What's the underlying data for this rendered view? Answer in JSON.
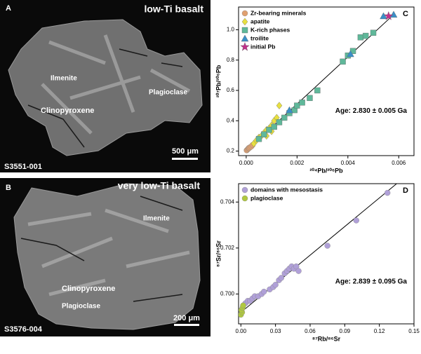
{
  "panels": [
    {
      "letter": "A",
      "title": "low-Ti basalt",
      "labels": [
        "Ilmenite",
        "Plagioclase",
        "Clinopyroxene"
      ],
      "sample": "S3551-001",
      "scale": "500 μm"
    },
    {
      "letter": "B",
      "title": "very low-Ti basalt",
      "labels": [
        "Ilmenite",
        "Clinopyroxene",
        "Plagioclase"
      ],
      "sample": "S3576-004",
      "scale": "200 μm"
    }
  ],
  "chart_data": [
    {
      "type": "scatter",
      "panel": "C",
      "x_label": "²⁰⁴Pb/²⁰⁶Pb",
      "y_label": "²⁰⁷Pb/²⁰⁶Pb",
      "annotation": "Age: 2.830 ± 0.005 Ga",
      "xlim": [
        -0.0003,
        0.0066
      ],
      "ylim": [
        0.17,
        1.15
      ],
      "xticks": [
        {
          "value": 0,
          "label": "0.000"
        },
        0.002,
        0.004,
        0.006
      ],
      "yticks": [
        0.2,
        0.4,
        0.6,
        0.8,
        {
          "value": 1,
          "label": "1.0"
        }
      ],
      "legend": "top-left",
      "series": [
        {
          "name": "Zr-bearing minerals",
          "color": "#e0a070",
          "marker": "circle",
          "x": [
            2e-05,
            5e-05,
            8e-05,
            0.0001,
            0.00012,
            0.00015,
            0.0002,
            0.00025
          ],
          "values": [
            0.205,
            0.21,
            0.215,
            0.22,
            0.22,
            0.225,
            0.23,
            0.24
          ]
        },
        {
          "name": "apatite",
          "color": "#e8e040",
          "marker": "diamond",
          "x": [
            0.0003,
            0.0004,
            0.0005,
            0.0006,
            0.0007,
            0.0008,
            0.0009,
            0.001,
            0.0011,
            0.0012,
            0.0013,
            0.0008,
            0.001
          ],
          "values": [
            0.25,
            0.27,
            0.29,
            0.3,
            0.32,
            0.34,
            0.35,
            0.37,
            0.4,
            0.42,
            0.5,
            0.3,
            0.33
          ]
        },
        {
          "name": "K-rich phases",
          "color": "#5fb89a",
          "marker": "square",
          "x": [
            0.0005,
            0.0007,
            0.0009,
            0.0011,
            0.0013,
            0.0015,
            0.0017,
            0.0019,
            0.002,
            0.0022,
            0.0025,
            0.0028,
            0.0038,
            0.004,
            0.0042,
            0.0045,
            0.0047,
            0.005
          ],
          "values": [
            0.28,
            0.31,
            0.34,
            0.36,
            0.39,
            0.42,
            0.45,
            0.47,
            0.5,
            0.52,
            0.55,
            0.6,
            0.79,
            0.83,
            0.86,
            0.95,
            0.96,
            0.98
          ]
        },
        {
          "name": "troilite",
          "color": "#3a8fc8",
          "marker": "triangle",
          "x": [
            0.0017,
            0.0041,
            0.0054,
            0.0058
          ],
          "values": [
            0.47,
            0.84,
            1.09,
            1.1
          ]
        },
        {
          "name": "initial Pb",
          "color": "#c0308a",
          "marker": "star",
          "x": [
            0.0056
          ],
          "values": [
            1.09
          ]
        }
      ],
      "fit": {
        "x": [
          0,
          0.0058
        ],
        "y": [
          0.2,
          1.1
        ]
      }
    },
    {
      "type": "scatter",
      "panel": "D",
      "x_label": "⁸⁷Rb/⁸⁶Sr",
      "y_label": "⁸⁷Sr/⁸⁶Sr",
      "annotation": "Age: 2.839 ± 0.095 Ga",
      "xlim": [
        -0.002,
        0.15
      ],
      "ylim": [
        0.6987,
        0.7048
      ],
      "xticks": [
        {
          "value": 0,
          "label": "0.00"
        },
        0.03,
        0.06,
        0.09,
        0.12,
        0.15
      ],
      "yticks": [
        {
          "value": 0.7,
          "label": "0.700"
        },
        0.702,
        0.704
      ],
      "legend": "top-left",
      "series": [
        {
          "name": "domains with mesostasis",
          "color": "#b0a0d8",
          "marker": "circle",
          "x": [
            0.002,
            0.004,
            0.006,
            0.008,
            0.01,
            0.012,
            0.015,
            0.018,
            0.02,
            0.025,
            0.028,
            0.03,
            0.033,
            0.035,
            0.038,
            0.04,
            0.042,
            0.044,
            0.046,
            0.048,
            0.05,
            0.075,
            0.1,
            0.127
          ],
          "values": [
            0.6995,
            0.6996,
            0.6997,
            0.6997,
            0.6998,
            0.6999,
            0.6999,
            0.7,
            0.7001,
            0.7002,
            0.7003,
            0.7004,
            0.7006,
            0.7007,
            0.7009,
            0.701,
            0.7011,
            0.7012,
            0.7011,
            0.7012,
            0.701,
            0.7021,
            0.7032,
            0.7044
          ]
        },
        {
          "name": "plagioclase",
          "color": "#b0c840",
          "marker": "circle",
          "x": [
            0,
            0.001,
            0.0005,
            0.0015,
            0.002
          ],
          "values": [
            0.6991,
            0.6992,
            0.6993,
            0.6994,
            0.6995
          ]
        }
      ],
      "fit": {
        "x": [
          0,
          0.135
        ],
        "y": [
          0.6992,
          0.7048
        ]
      }
    }
  ]
}
